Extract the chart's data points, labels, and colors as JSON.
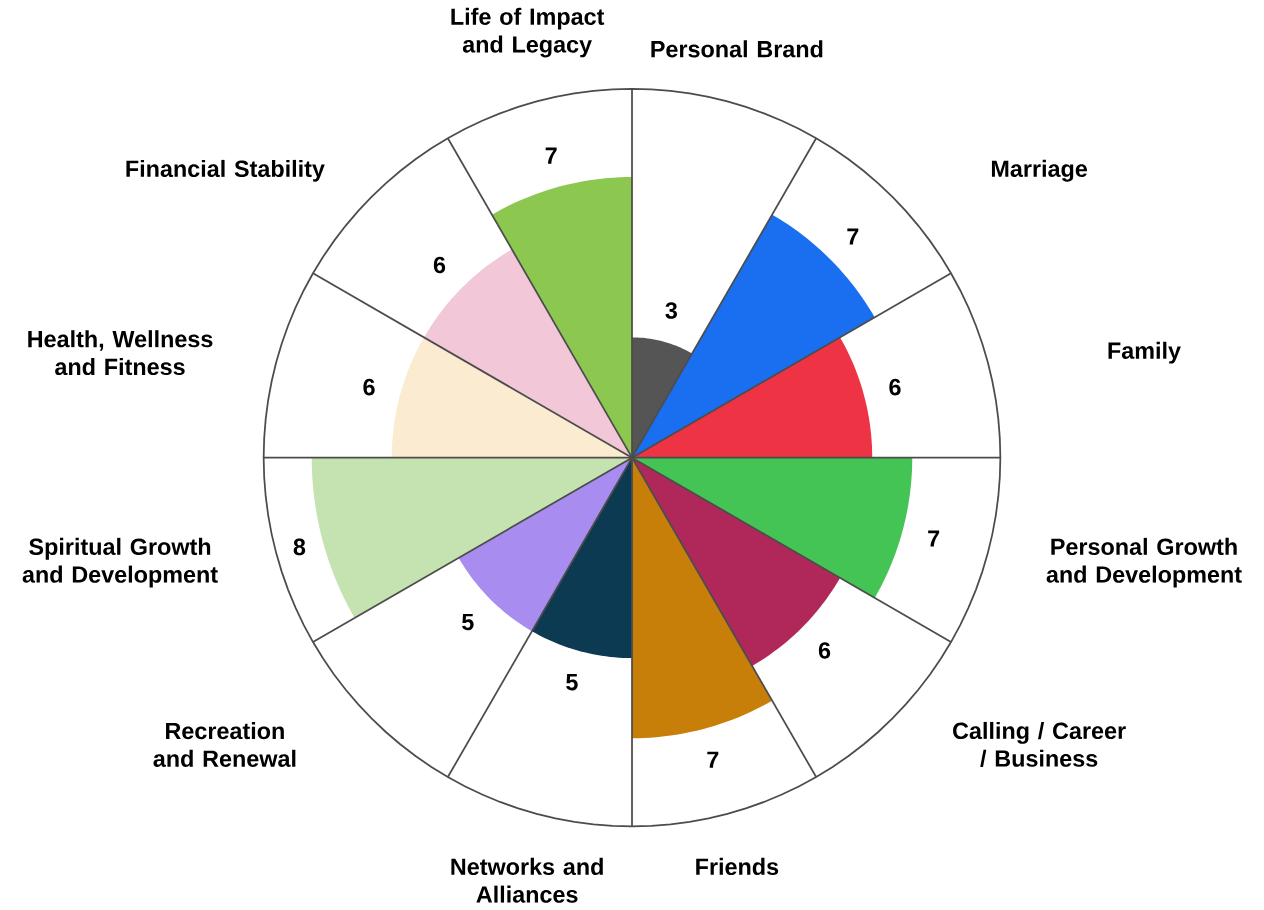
{
  "chart_data": {
    "type": "other",
    "categories": [
      "Personal Brand",
      "Marriage",
      "Family",
      "Personal Growth and Development",
      "Calling / Career / Business",
      "Friends",
      "Networks and Alliances",
      "Recreation and Renewal",
      "Spiritual Growth and Development",
      "Health, Wellness and Fitness",
      "Financial Stability",
      "Life of Impact and Legacy"
    ],
    "values": [
      3,
      7,
      6,
      7,
      6,
      7,
      5,
      5,
      8,
      6,
      6,
      7
    ],
    "colors": [
      "#555555",
      "#1a6ff0",
      "#ee3344",
      "#44c455",
      "#b0285a",
      "#c87f0a",
      "#0b3a52",
      "#a98cf0",
      "#c5e3b0",
      "#fbebd0",
      "#f2c8d8",
      "#8cc850"
    ],
    "data_labels": true
  }
}
